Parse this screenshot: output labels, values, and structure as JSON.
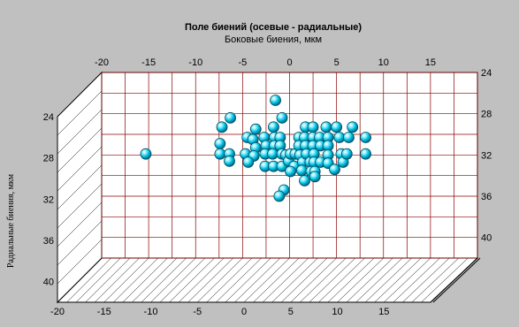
{
  "chart_data": {
    "type": "scatter",
    "title": "Поле биений (осевые - радиальные)",
    "subtitle": "Боковые биения, мкм",
    "xlabel": "Боковые биения, мкм",
    "ylabel": "Радиальные биения, мкм",
    "top_x_ticks": [
      "-20",
      "-15",
      "-10",
      "-5",
      "0",
      "5",
      "10",
      "15"
    ],
    "bottom_x_ticks": [
      "-20",
      "-15",
      "-10",
      "-5",
      "0",
      "5",
      "10",
      "15"
    ],
    "left_y_ticks": [
      "24",
      "28",
      "32",
      "36",
      "40"
    ],
    "right_y_ticks": [
      "24",
      "28",
      "32",
      "36",
      "40"
    ],
    "xlim": [
      -20,
      20
    ],
    "ylim": [
      24,
      42
    ],
    "grid": true,
    "colors": {
      "background": "#c0c0c0",
      "plot": "#ffffff",
      "grid": "#8b0000",
      "marker": "#00c8e8"
    },
    "points": [
      {
        "x": -15.3,
        "y": 31.9
      },
      {
        "x": -7.2,
        "y": 29.3
      },
      {
        "x": -6.3,
        "y": 28.4
      },
      {
        "x": -7.4,
        "y": 30.9
      },
      {
        "x": -7.4,
        "y": 31.9
      },
      {
        "x": -6.4,
        "y": 31.9
      },
      {
        "x": -6.4,
        "y": 32.6
      },
      {
        "x": -4.5,
        "y": 30.3
      },
      {
        "x": -4.7,
        "y": 31.9
      },
      {
        "x": -3.6,
        "y": 29.5
      },
      {
        "x": -3.9,
        "y": 30.5
      },
      {
        "x": -3.6,
        "y": 31.3
      },
      {
        "x": -3.8,
        "y": 32.1
      },
      {
        "x": -4.4,
        "y": 32.7
      },
      {
        "x": -2.7,
        "y": 30.3
      },
      {
        "x": -2.5,
        "y": 31.1
      },
      {
        "x": -2.6,
        "y": 31.9
      },
      {
        "x": -2.6,
        "y": 33.1
      },
      {
        "x": -1.7,
        "y": 29.3
      },
      {
        "x": -1.6,
        "y": 30.3
      },
      {
        "x": -1.6,
        "y": 31.1
      },
      {
        "x": -1.8,
        "y": 31.9
      },
      {
        "x": -1.7,
        "y": 33.1
      },
      {
        "x": -1.0,
        "y": 30.3
      },
      {
        "x": -1.0,
        "y": 31.1
      },
      {
        "x": -0.8,
        "y": 31.9
      },
      {
        "x": -0.8,
        "y": 33.1
      },
      {
        "x": -1.5,
        "y": 26.7
      },
      {
        "x": -0.8,
        "y": 28.4
      },
      {
        "x": -0.4,
        "y": 32.0
      },
      {
        "x": -0.1,
        "y": 32.6
      },
      {
        "x": 0.1,
        "y": 31.9
      },
      {
        "x": 0.6,
        "y": 31.9
      },
      {
        "x": 0.5,
        "y": 33.1
      },
      {
        "x": 0.1,
        "y": 33.6
      },
      {
        "x": 1.0,
        "y": 30.3
      },
      {
        "x": 1.0,
        "y": 31.1
      },
      {
        "x": 1.1,
        "y": 32.0
      },
      {
        "x": 1.4,
        "y": 32.7
      },
      {
        "x": 1.3,
        "y": 33.5
      },
      {
        "x": 1.6,
        "y": 34.5
      },
      {
        "x": 1.7,
        "y": 29.3
      },
      {
        "x": 1.6,
        "y": 30.3
      },
      {
        "x": 1.7,
        "y": 31.1
      },
      {
        "x": 1.8,
        "y": 31.9
      },
      {
        "x": 2.2,
        "y": 32.7
      },
      {
        "x": 2.3,
        "y": 33.6
      },
      {
        "x": 2.5,
        "y": 29.3
      },
      {
        "x": 2.5,
        "y": 30.3
      },
      {
        "x": 2.5,
        "y": 31.1
      },
      {
        "x": 2.6,
        "y": 31.9
      },
      {
        "x": 2.6,
        "y": 32.7
      },
      {
        "x": 2.7,
        "y": 33.6
      },
      {
        "x": 2.7,
        "y": 34.1
      },
      {
        "x": 3.2,
        "y": 30.3
      },
      {
        "x": 3.3,
        "y": 31.1
      },
      {
        "x": 3.3,
        "y": 32.7
      },
      {
        "x": 3.9,
        "y": 29.3
      },
      {
        "x": 4.1,
        "y": 30.3
      },
      {
        "x": 4.1,
        "y": 31.1
      },
      {
        "x": 4.1,
        "y": 32.0
      },
      {
        "x": 4.1,
        "y": 32.8
      },
      {
        "x": 4.8,
        "y": 33.4
      },
      {
        "x": 5.0,
        "y": 29.3
      },
      {
        "x": 5.3,
        "y": 30.3
      },
      {
        "x": 5.5,
        "y": 31.9
      },
      {
        "x": 5.7,
        "y": 32.7
      },
      {
        "x": 6.1,
        "y": 31.9
      },
      {
        "x": 6.3,
        "y": 30.3
      },
      {
        "x": 6.7,
        "y": 29.3
      },
      {
        "x": 8.1,
        "y": 30.3
      },
      {
        "x": 8.1,
        "y": 31.9
      },
      {
        "x": -0.6,
        "y": 35.4
      },
      {
        "x": -1.1,
        "y": 36.0
      }
    ]
  }
}
